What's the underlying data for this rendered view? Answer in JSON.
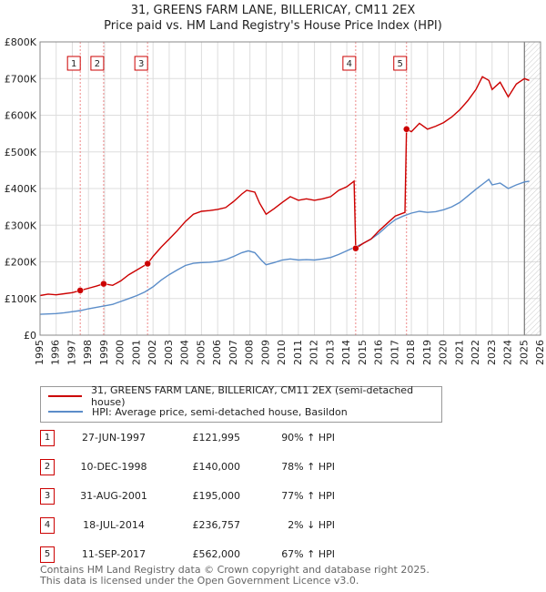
{
  "header": {
    "title": "31, GREENS FARM LANE, BILLERICAY, CM11 2EX",
    "subtitle": "Price paid vs. HM Land Registry's House Price Index (HPI)"
  },
  "colors": {
    "property": "#cc0000",
    "hpi": "#5b8dc9",
    "grid": "#dddddd",
    "marker": "#cc0000"
  },
  "chart_data": {
    "type": "line",
    "title": "31, GREENS FARM LANE, BILLERICAY, CM11 2EX",
    "subtitle": "Price paid vs. HM Land Registry's House Price Index (HPI)",
    "xlabel": "",
    "ylabel": "",
    "xlim": [
      1995,
      2026
    ],
    "ylim": [
      0,
      800000
    ],
    "y_ticks": [
      0,
      100000,
      200000,
      300000,
      400000,
      500000,
      600000,
      700000,
      800000
    ],
    "y_tick_labels": [
      "£0",
      "£100K",
      "£200K",
      "£300K",
      "£400K",
      "£500K",
      "£600K",
      "£700K",
      "£800K"
    ],
    "x_ticks": [
      1995,
      1996,
      1997,
      1998,
      1999,
      2000,
      2001,
      2002,
      2003,
      2004,
      2005,
      2006,
      2007,
      2008,
      2009,
      2010,
      2011,
      2012,
      2013,
      2014,
      2015,
      2016,
      2017,
      2018,
      2019,
      2020,
      2021,
      2022,
      2023,
      2024,
      2025,
      2026
    ],
    "x_tick_labels": [
      "1995",
      "1996",
      "1997",
      "1998",
      "1999",
      "2000",
      "2001",
      "2002",
      "2003",
      "2004",
      "2005",
      "2006",
      "2007",
      "2008",
      "2009",
      "2010",
      "2011",
      "2012",
      "2013",
      "2014",
      "2015",
      "2016",
      "2017",
      "2018",
      "2019",
      "2020",
      "2021",
      "2022",
      "2023",
      "2024",
      "2025",
      "2026"
    ],
    "grid": true,
    "hatched_region_start": 2025.0,
    "series": [
      {
        "name": "31, GREENS FARM LANE, BILLERICAY, CM11 2EX (semi-detached house)",
        "color": "#cc0000",
        "points": [
          [
            1995,
            108000
          ],
          [
            1995.5,
            112000
          ],
          [
            1996,
            110000
          ],
          [
            1996.5,
            113000
          ],
          [
            1997,
            116000
          ],
          [
            1997.49,
            121995
          ],
          [
            1998,
            128000
          ],
          [
            1998.5,
            134000
          ],
          [
            1998.94,
            140000
          ],
          [
            1999.5,
            136000
          ],
          [
            2000,
            148000
          ],
          [
            2000.5,
            165000
          ],
          [
            2001,
            178000
          ],
          [
            2001.66,
            195000
          ],
          [
            2002,
            215000
          ],
          [
            2002.5,
            240000
          ],
          [
            2003,
            262000
          ],
          [
            2003.5,
            285000
          ],
          [
            2004,
            310000
          ],
          [
            2004.5,
            330000
          ],
          [
            2005,
            338000
          ],
          [
            2005.5,
            340000
          ],
          [
            2006,
            343000
          ],
          [
            2006.5,
            348000
          ],
          [
            2007,
            365000
          ],
          [
            2007.5,
            385000
          ],
          [
            2007.8,
            395000
          ],
          [
            2008.3,
            390000
          ],
          [
            2008.6,
            360000
          ],
          [
            2009,
            330000
          ],
          [
            2009.5,
            345000
          ],
          [
            2010,
            362000
          ],
          [
            2010.5,
            378000
          ],
          [
            2011,
            368000
          ],
          [
            2011.5,
            372000
          ],
          [
            2012,
            368000
          ],
          [
            2012.5,
            372000
          ],
          [
            2013,
            378000
          ],
          [
            2013.5,
            395000
          ],
          [
            2014,
            405000
          ],
          [
            2014.45,
            420000
          ],
          [
            2014.55,
            236757
          ],
          [
            2015,
            250000
          ],
          [
            2015.5,
            262000
          ],
          [
            2016,
            285000
          ],
          [
            2016.5,
            305000
          ],
          [
            2017,
            325000
          ],
          [
            2017.6,
            335000
          ],
          [
            2017.7,
            562000
          ],
          [
            2018,
            555000
          ],
          [
            2018.5,
            578000
          ],
          [
            2019,
            562000
          ],
          [
            2019.5,
            570000
          ],
          [
            2020,
            580000
          ],
          [
            2020.5,
            595000
          ],
          [
            2021,
            615000
          ],
          [
            2021.5,
            640000
          ],
          [
            2022,
            670000
          ],
          [
            2022.4,
            705000
          ],
          [
            2022.8,
            695000
          ],
          [
            2023,
            670000
          ],
          [
            2023.5,
            690000
          ],
          [
            2024,
            650000
          ],
          [
            2024.5,
            685000
          ],
          [
            2025,
            700000
          ],
          [
            2025.3,
            695000
          ]
        ]
      },
      {
        "name": "HPI: Average price, semi-detached house, Basildon",
        "color": "#5b8dc9",
        "points": [
          [
            1995,
            57000
          ],
          [
            1995.5,
            58000
          ],
          [
            1996,
            59000
          ],
          [
            1996.5,
            61000
          ],
          [
            1997,
            64000
          ],
          [
            1997.5,
            67000
          ],
          [
            1998,
            72000
          ],
          [
            1998.5,
            76000
          ],
          [
            1999,
            80000
          ],
          [
            1999.5,
            84000
          ],
          [
            2000,
            92000
          ],
          [
            2000.5,
            100000
          ],
          [
            2001,
            108000
          ],
          [
            2001.5,
            118000
          ],
          [
            2002,
            132000
          ],
          [
            2002.5,
            150000
          ],
          [
            2003,
            165000
          ],
          [
            2003.5,
            178000
          ],
          [
            2004,
            190000
          ],
          [
            2004.5,
            196000
          ],
          [
            2005,
            198000
          ],
          [
            2005.5,
            199000
          ],
          [
            2006,
            201000
          ],
          [
            2006.5,
            206000
          ],
          [
            2007,
            215000
          ],
          [
            2007.5,
            225000
          ],
          [
            2007.9,
            230000
          ],
          [
            2008.3,
            225000
          ],
          [
            2008.7,
            205000
          ],
          [
            2009,
            192000
          ],
          [
            2009.5,
            198000
          ],
          [
            2010,
            205000
          ],
          [
            2010.5,
            208000
          ],
          [
            2011,
            205000
          ],
          [
            2011.5,
            206000
          ],
          [
            2012,
            205000
          ],
          [
            2012.5,
            208000
          ],
          [
            2013,
            212000
          ],
          [
            2013.5,
            220000
          ],
          [
            2014,
            230000
          ],
          [
            2014.5,
            240000
          ],
          [
            2015,
            250000
          ],
          [
            2015.5,
            262000
          ],
          [
            2016,
            278000
          ],
          [
            2016.5,
            298000
          ],
          [
            2017,
            315000
          ],
          [
            2017.5,
            325000
          ],
          [
            2018,
            333000
          ],
          [
            2018.5,
            338000
          ],
          [
            2019,
            335000
          ],
          [
            2019.5,
            337000
          ],
          [
            2020,
            342000
          ],
          [
            2020.5,
            350000
          ],
          [
            2021,
            362000
          ],
          [
            2021.5,
            380000
          ],
          [
            2022,
            398000
          ],
          [
            2022.5,
            415000
          ],
          [
            2022.8,
            425000
          ],
          [
            2023,
            410000
          ],
          [
            2023.5,
            415000
          ],
          [
            2024,
            400000
          ],
          [
            2024.5,
            410000
          ],
          [
            2025,
            418000
          ],
          [
            2025.3,
            420000
          ]
        ]
      }
    ],
    "sales": [
      {
        "label": "1",
        "x": 1997.49,
        "y": 121995
      },
      {
        "label": "2",
        "x": 1998.94,
        "y": 140000
      },
      {
        "label": "3",
        "x": 2001.66,
        "y": 195000
      },
      {
        "label": "4",
        "x": 2014.55,
        "y": 236757
      },
      {
        "label": "5",
        "x": 2017.7,
        "y": 562000
      }
    ]
  },
  "legend": {
    "property_label": "31, GREENS FARM LANE, BILLERICAY, CM11 2EX (semi-detached house)",
    "hpi_label": "HPI: Average price, semi-detached house, Basildon"
  },
  "transactions": [
    {
      "num": "1",
      "date": "27-JUN-1997",
      "price": "£121,995",
      "hpi": "90% ↑ HPI"
    },
    {
      "num": "2",
      "date": "10-DEC-1998",
      "price": "£140,000",
      "hpi": "78% ↑ HPI"
    },
    {
      "num": "3",
      "date": "31-AUG-2001",
      "price": "£195,000",
      "hpi": "77% ↑ HPI"
    },
    {
      "num": "4",
      "date": "18-JUL-2014",
      "price": "£236,757",
      "hpi": "2% ↓ HPI"
    },
    {
      "num": "5",
      "date": "11-SEP-2017",
      "price": "£562,000",
      "hpi": "67% ↑ HPI"
    }
  ],
  "footer": {
    "line1": "Contains HM Land Registry data © Crown copyright and database right 2025.",
    "line2": "This data is licensed under the Open Government Licence v3.0."
  }
}
